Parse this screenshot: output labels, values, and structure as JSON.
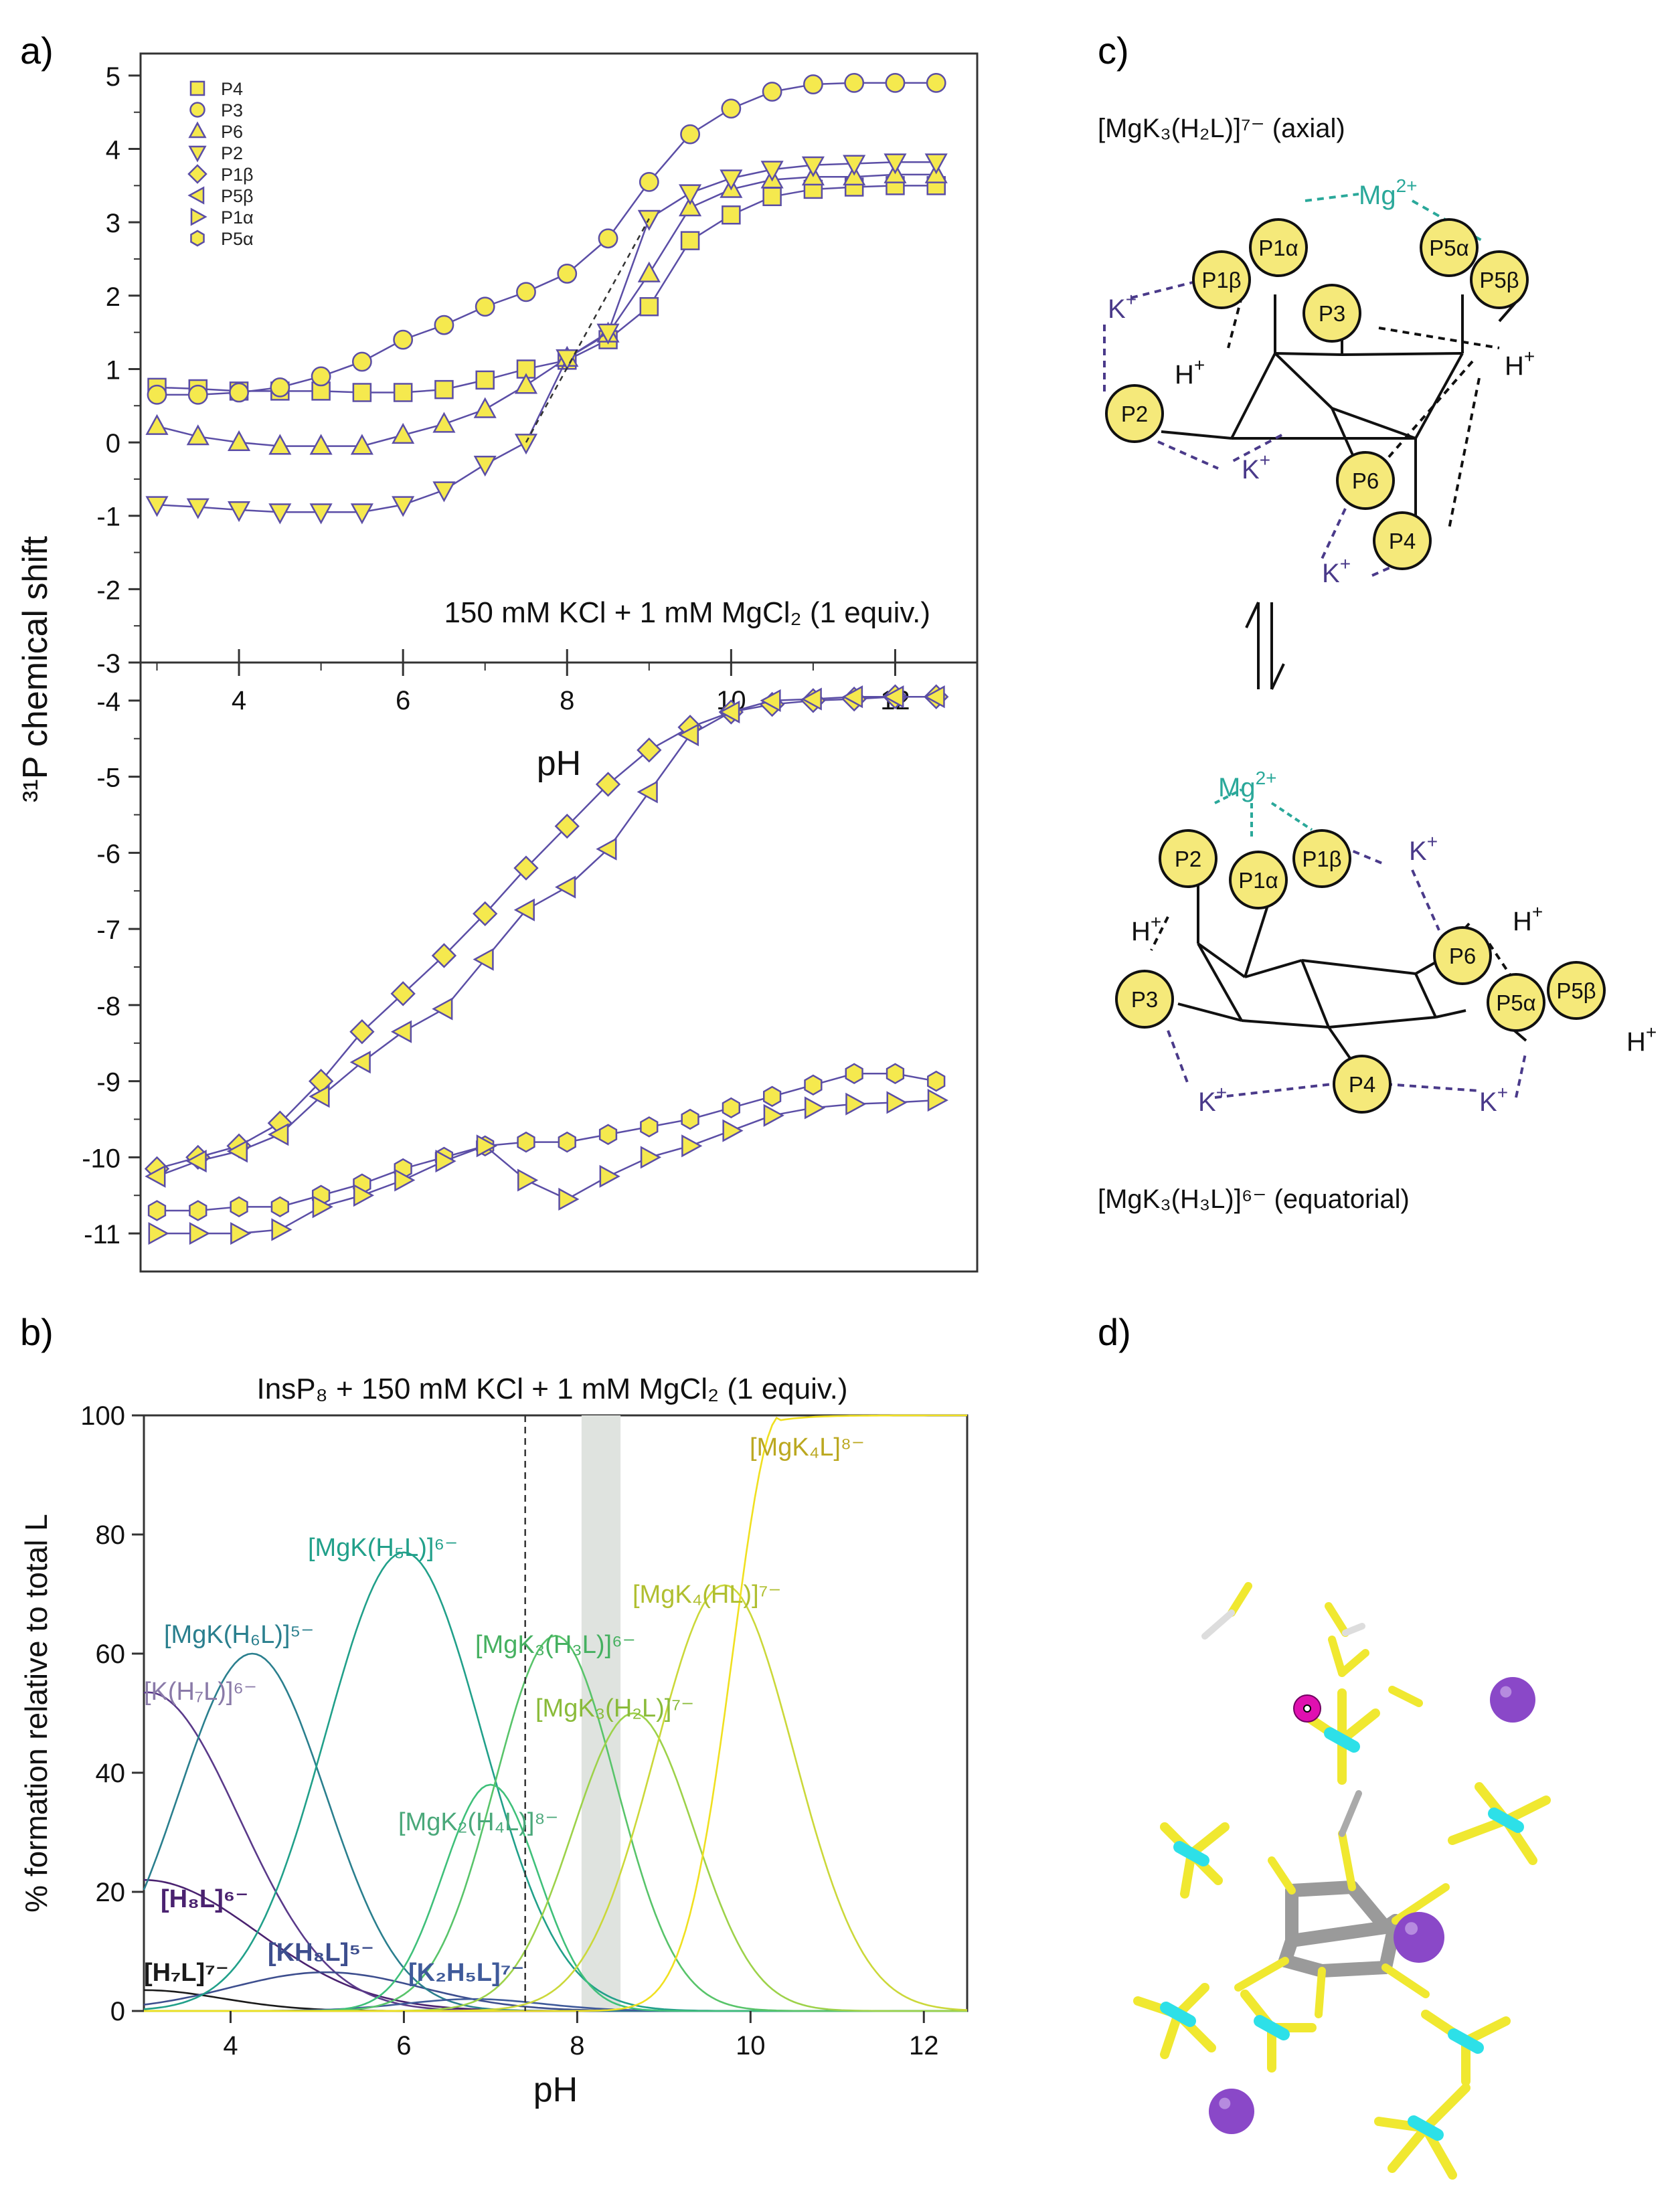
{
  "panel_labels": {
    "a": "a)",
    "b": "b)",
    "c": "c)",
    "d": "d)"
  },
  "colors": {
    "marker_fill": "#f5e94e",
    "marker_stroke": "#5b4ea6",
    "line": "#5b4ea6",
    "mg": "#2aa89a",
    "k": "#4a3a8a",
    "phos_fill": "#f5e97a",
    "carbon": "#2de0e8",
    "phosphate": "#f0e830",
    "ring": "#9a9a9a",
    "mg_atom": "#e010b0",
    "k_atom": "#8a48c8"
  },
  "chart_data": [
    {
      "id": "a_top",
      "type": "line",
      "ylabel": "³¹P chemical shift",
      "xlabel": "pH",
      "ylim": [
        -3,
        5.3
      ],
      "xlim": [
        2.8,
        13
      ],
      "annotation": "150 mM KCl + 1 mM MgCl₂ (1 equiv.)",
      "x_ticks": [
        "4",
        "6",
        "8",
        "10",
        "12"
      ],
      "y_ticks": [
        "5",
        "4",
        "3",
        "2",
        "1",
        "0",
        "-1",
        "-2",
        "-3"
      ],
      "legend": [
        {
          "name": "P4",
          "marker": "square"
        },
        {
          "name": "P3",
          "marker": "circle"
        },
        {
          "name": "P6",
          "marker": "triangle-up"
        },
        {
          "name": "P2",
          "marker": "triangle-down"
        },
        {
          "name": "P1β",
          "marker": "diamond"
        },
        {
          "name": "P5β",
          "marker": "triangle-left"
        },
        {
          "name": "P1α",
          "marker": "triangle-right"
        },
        {
          "name": "P5α",
          "marker": "hexagon"
        }
      ],
      "series": [
        {
          "name": "P4",
          "marker": "square",
          "x": [
            3.0,
            3.5,
            4.0,
            4.5,
            5.0,
            5.5,
            6.0,
            6.5,
            7.0,
            7.5,
            8.0,
            8.5,
            9.0,
            9.5,
            10.0,
            10.5,
            11.0,
            11.5,
            12.0,
            12.5
          ],
          "values": [
            0.75,
            0.73,
            0.7,
            0.7,
            0.7,
            0.68,
            0.68,
            0.72,
            0.85,
            1.0,
            1.12,
            1.4,
            1.85,
            2.75,
            3.1,
            3.35,
            3.45,
            3.48,
            3.5,
            3.5
          ]
        },
        {
          "name": "P3",
          "marker": "circle",
          "x": [
            3.0,
            3.5,
            4.0,
            4.5,
            5.0,
            5.5,
            6.0,
            6.5,
            7.0,
            7.5,
            8.0,
            8.5,
            9.0,
            9.5,
            10.0,
            10.5,
            11.0,
            11.5,
            12.0,
            12.5
          ],
          "values": [
            0.65,
            0.65,
            0.68,
            0.75,
            0.9,
            1.1,
            1.4,
            1.6,
            1.85,
            2.05,
            2.3,
            2.78,
            3.55,
            4.2,
            4.55,
            4.78,
            4.88,
            4.9,
            4.9,
            4.9
          ]
        },
        {
          "name": "P6",
          "marker": "triangle-up",
          "x": [
            3.0,
            3.5,
            4.0,
            4.5,
            5.0,
            5.5,
            6.0,
            6.5,
            7.0,
            7.5,
            8.0,
            8.5,
            9.0,
            9.5,
            10.0,
            10.5,
            11.0,
            11.5,
            12.0,
            12.5
          ],
          "values": [
            0.22,
            0.08,
            0.0,
            -0.05,
            -0.05,
            -0.05,
            0.1,
            0.25,
            0.45,
            0.78,
            1.15,
            1.48,
            2.3,
            3.2,
            3.45,
            3.58,
            3.62,
            3.62,
            3.65,
            3.65
          ]
        },
        {
          "name": "P2",
          "marker": "triangle-down",
          "x": [
            3.0,
            3.5,
            4.0,
            4.5,
            5.0,
            5.5,
            6.0,
            6.5,
            7.0,
            7.5,
            8.0,
            8.5,
            9.0,
            9.5,
            10.0,
            10.5,
            11.0,
            11.5,
            12.0,
            12.5
          ],
          "values": [
            -0.85,
            -0.88,
            -0.92,
            -0.95,
            -0.95,
            -0.95,
            -0.85,
            -0.65,
            -0.3,
            0.0,
            1.15,
            1.5,
            3.05,
            3.4,
            3.6,
            3.72,
            3.78,
            3.8,
            3.82,
            3.82
          ]
        }
      ],
      "dashed_x": [
        7.5,
        9.0
      ],
      "dashed_y": [
        0.0,
        3.05
      ]
    },
    {
      "id": "a_bottom",
      "type": "line",
      "ylim": [
        -11.5,
        -3.5
      ],
      "xlim": [
        2.8,
        13
      ],
      "y_ticks": [
        "-4",
        "-5",
        "-6",
        "-7",
        "-8",
        "-9",
        "-10",
        "-11"
      ],
      "series": [
        {
          "name": "P1β",
          "marker": "diamond",
          "x": [
            3.0,
            3.5,
            4.0,
            4.5,
            5.0,
            5.5,
            6.0,
            6.5,
            7.0,
            7.5,
            8.0,
            8.5,
            9.0,
            9.5,
            10.0,
            10.5,
            11.0,
            11.5,
            12.0,
            12.5
          ],
          "values": [
            -10.15,
            -10.0,
            -9.85,
            -9.55,
            -9.0,
            -8.35,
            -7.85,
            -7.35,
            -6.8,
            -6.2,
            -5.65,
            -5.1,
            -4.65,
            -4.35,
            -4.15,
            -4.05,
            -4.0,
            -3.98,
            -3.95,
            -3.95
          ]
        },
        {
          "name": "P5β",
          "marker": "triangle-left",
          "x": [
            3.0,
            3.5,
            4.0,
            4.5,
            5.0,
            5.5,
            6.0,
            6.5,
            7.0,
            7.5,
            8.0,
            8.5,
            9.0,
            9.5,
            10.0,
            10.5,
            11.0,
            11.5,
            12.0,
            12.5
          ],
          "values": [
            -10.25,
            -10.05,
            -9.92,
            -9.7,
            -9.2,
            -8.75,
            -8.35,
            -8.05,
            -7.4,
            -6.75,
            -6.45,
            -5.95,
            -5.2,
            -4.45,
            -4.15,
            -4.0,
            -3.98,
            -3.95,
            -3.95,
            -3.95
          ]
        },
        {
          "name": "P5α",
          "marker": "hexagon",
          "x": [
            3.0,
            3.5,
            4.0,
            4.5,
            5.0,
            5.5,
            6.0,
            6.5,
            7.0,
            7.5,
            8.0,
            8.5,
            9.0,
            9.5,
            10.0,
            10.5,
            11.0,
            11.5,
            12.0,
            12.5
          ],
          "values": [
            -10.7,
            -10.7,
            -10.65,
            -10.65,
            -10.5,
            -10.35,
            -10.15,
            -10.0,
            -9.85,
            -9.8,
            -9.8,
            -9.7,
            -9.6,
            -9.5,
            -9.35,
            -9.2,
            -9.05,
            -8.9,
            -8.9,
            -9.0
          ]
        },
        {
          "name": "P1α",
          "marker": "triangle-right",
          "x": [
            3.0,
            3.5,
            4.0,
            4.5,
            5.0,
            5.5,
            6.0,
            6.5,
            7.0,
            7.5,
            8.0,
            8.5,
            9.0,
            9.5,
            10.0,
            10.5,
            11.0,
            11.5,
            12.0,
            12.5
          ],
          "values": [
            -11.0,
            -11.0,
            -11.0,
            -10.95,
            -10.65,
            -10.5,
            -10.3,
            -10.05,
            -9.85,
            -10.3,
            -10.55,
            -10.25,
            -10.0,
            -9.85,
            -9.65,
            -9.45,
            -9.35,
            -9.3,
            -9.28,
            -9.25
          ]
        }
      ]
    },
    {
      "id": "b",
      "type": "line",
      "title": "InsP₈ + 150 mM KCl + 1 mM MgCl₂ (1 equiv.)",
      "xlabel": "pH",
      "ylabel": "% formation relative to total L",
      "xlim": [
        3,
        12.5
      ],
      "ylim": [
        0,
        100
      ],
      "x_ticks": [
        "4",
        "6",
        "8",
        "10",
        "12"
      ],
      "y_ticks": [
        "0",
        "20",
        "40",
        "60",
        "80",
        "100"
      ],
      "dashed_x": 7.4,
      "shaded_range": [
        8.05,
        8.5
      ],
      "series": [
        {
          "name": "[H₇L]⁷⁻",
          "color": "#1a1a1a",
          "shape": [
            3.0,
            3.5,
            0.9,
            -1
          ]
        },
        {
          "name": "[H₈L]⁶⁻",
          "color": "#4a2270",
          "shape": [
            3.0,
            22,
            1.3,
            -1
          ]
        },
        {
          "name": "[K(H₇L)]⁶⁻",
          "color": "#5a3a8a",
          "shape": [
            3.05,
            53.5,
            1.05,
            0
          ]
        },
        {
          "name": "[KH₈L]⁵⁻",
          "color": "#3d4e8e",
          "shape": [
            5.1,
            6.5,
            1.1,
            0
          ]
        },
        {
          "name": "[MgK(H₆L)]⁵⁻",
          "color": "#2a7f8e",
          "shape": [
            4.25,
            60,
            0.85,
            0
          ]
        },
        {
          "name": "[MgK(H₅L)]⁶⁻",
          "color": "#21a08a",
          "shape": [
            6.0,
            77,
            0.9,
            0
          ]
        },
        {
          "name": "[K₂H₅L]⁷⁻",
          "color": "#3f5a9a",
          "shape": [
            6.8,
            2.0,
            0.8,
            0
          ]
        },
        {
          "name": "[MgK₂(H₄L)]⁸⁻",
          "color": "#3fc07a",
          "shape": [
            7.0,
            38,
            0.55,
            0
          ]
        },
        {
          "name": "[MgK₃(H₃L)]⁶⁻",
          "color": "#58c46a",
          "shape": [
            7.75,
            63,
            0.7,
            0
          ]
        },
        {
          "name": "[MgK₃(H₂L)]⁷⁻",
          "color": "#9dd24a",
          "shape": [
            8.65,
            50,
            0.7,
            0
          ]
        },
        {
          "name": "[MgK₄(HL)]⁷⁻",
          "color": "#cbd83a",
          "shape": [
            9.7,
            71.5,
            0.8,
            0
          ]
        },
        {
          "name": "[MgK₄L]⁸⁻",
          "color": "#f0e020",
          "shape": [
            10.35,
            100,
            0.55,
            1
          ]
        }
      ],
      "labels": [
        {
          "text": "[MgK₄L]⁸⁻",
          "color": "#bba820"
        },
        {
          "text": "[MgK(H₅L)]⁶⁻",
          "color": "#21a08a"
        },
        {
          "text": "[MgK₄(HL)]⁷⁻",
          "color": "#b0bf30"
        },
        {
          "text": "[MgK(H₆L)]⁵⁻",
          "color": "#2a7f8e"
        },
        {
          "text": "[MgK₃(H₃L)]⁶⁻",
          "color": "#45b060"
        },
        {
          "text": "[K(H₇L)]⁶⁻",
          "color": "#8a7aa8"
        },
        {
          "text": "[MgK₃(H₂L)]⁷⁻",
          "color": "#8abb3a"
        },
        {
          "text": "[MgK₂(H₄L)]⁸⁻",
          "color": "#4aa87a"
        },
        {
          "text": "[H₈L]⁶⁻",
          "color": "#4a2270"
        },
        {
          "text": "[KH₈L]⁵⁻",
          "color": "#3d4e8e"
        },
        {
          "text": "[H₇L]⁷⁻",
          "color": "#1a1a1a"
        },
        {
          "text": "[K₂H₅L]⁷⁻",
          "color": "#3f5a9a"
        }
      ]
    }
  ],
  "panel_c": {
    "top_title": "[MgK₃(H₂L)]⁷⁻ (axial)",
    "bottom_title": "[MgK₃(H₃L)]⁶⁻ (equatorial)",
    "mg": "Mg",
    "mg_sup": "2+",
    "k": "K",
    "h": "H",
    "plus": "+",
    "top_phosphates": [
      "P1α",
      "P5α",
      "P1β",
      "P5β",
      "P3",
      "P2",
      "P6",
      "P4"
    ],
    "bottom_phosphates": [
      "P2",
      "P1β",
      "P1α",
      "P6",
      "P5β",
      "P3",
      "P5α",
      "P4"
    ]
  }
}
